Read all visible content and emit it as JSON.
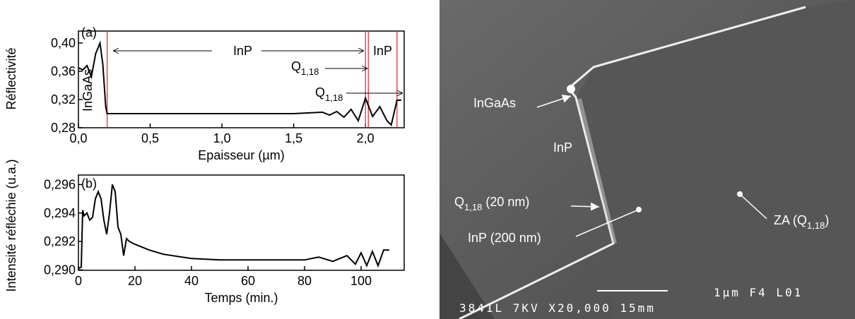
{
  "chart_data": [
    {
      "type": "line",
      "x_label": "Epaisseur (µm)",
      "y_label": "Réflectivité",
      "x": [
        0,
        0.03,
        0.06,
        0.09,
        0.12,
        0.15,
        0.17,
        0.19,
        0.2,
        0.5,
        1.0,
        1.5,
        1.6,
        1.7,
        1.75,
        1.8,
        1.85,
        1.9,
        1.95,
        2.0,
        2.05,
        2.1,
        2.15,
        2.18,
        2.22,
        2.25
      ],
      "values": [
        0.365,
        0.362,
        0.368,
        0.352,
        0.385,
        0.4,
        0.37,
        0.31,
        0.3,
        0.3,
        0.3,
        0.3,
        0.301,
        0.302,
        0.298,
        0.303,
        0.295,
        0.306,
        0.29,
        0.322,
        0.296,
        0.31,
        0.29,
        0.284,
        0.319,
        0.319
      ],
      "color": "#000000",
      "xlim": [
        0,
        2.27
      ],
      "ylim": [
        0.28,
        0.417
      ],
      "xticks": [
        {
          "value": 0,
          "label": "0,0"
        },
        {
          "value": 0.5,
          "label": "0,5"
        },
        {
          "value": 1,
          "label": "1,0"
        },
        {
          "value": 1.5,
          "label": "1,5"
        },
        {
          "value": 2,
          "label": "2,0"
        }
      ],
      "yticks": [
        {
          "value": 0.28,
          "label": "0,28"
        },
        {
          "value": 0.32,
          "label": "0,32"
        },
        {
          "value": 0.36,
          "label": "0,36"
        },
        {
          "value": 0.4,
          "label": "0,40"
        }
      ],
      "markers": [
        0.2,
        2.0,
        2.02,
        2.22
      ],
      "marker_color": "#e02020",
      "annotations": [
        {
          "text": "(a)"
        },
        {
          "text": "InP"
        },
        {
          "text": "Q",
          "sub": "1,18"
        },
        {
          "text": "InP"
        },
        {
          "text": "Q",
          "sub": "1,18"
        },
        {
          "text": "InGaAs"
        }
      ]
    },
    {
      "type": "line",
      "x_label": "Temps (min.)",
      "y_label": "Intensité réfléchie (u.a.)",
      "x": [
        0,
        1,
        1.5,
        2,
        3,
        4,
        5,
        6,
        7,
        8,
        9,
        10,
        11,
        12,
        13,
        14,
        15,
        16,
        17,
        18,
        20,
        25,
        30,
        40,
        50,
        60,
        70,
        80,
        85,
        90,
        95,
        98,
        100,
        102,
        104,
        106,
        108,
        110
      ],
      "values": [
        0.2901,
        0.2902,
        0.2942,
        0.2938,
        0.294,
        0.2935,
        0.2937,
        0.295,
        0.2955,
        0.295,
        0.2935,
        0.2925,
        0.294,
        0.296,
        0.2955,
        0.293,
        0.2925,
        0.291,
        0.2922,
        0.292,
        0.2918,
        0.2914,
        0.2911,
        0.2908,
        0.2907,
        0.2907,
        0.2907,
        0.2907,
        0.2909,
        0.2906,
        0.291,
        0.2904,
        0.2912,
        0.2903,
        0.2913,
        0.2903,
        0.2914,
        0.2914
      ],
      "color": "#000000",
      "xlim": [
        0,
        115.25
      ],
      "ylim": [
        0.28997,
        0.29667
      ],
      "xticks": [
        0,
        20,
        40,
        60,
        80,
        100
      ],
      "yticks": [
        {
          "value": 0.29,
          "label": "0,290"
        },
        {
          "value": 0.292,
          "label": "0,292"
        },
        {
          "value": 0.294,
          "label": "0,294"
        },
        {
          "value": 0.296,
          "label": "0,296"
        }
      ],
      "annotations": [
        {
          "text": "(b)"
        }
      ]
    }
  ],
  "image": {
    "labels": [
      {
        "text": "InGaAs"
      },
      {
        "text": "InP"
      },
      {
        "text": "Q",
        "sub": "1,18",
        "after": " (20 nm)"
      },
      {
        "text": "InP (200 nm)"
      },
      {
        "text": "ZA (Q",
        "sub": "1,18",
        "after": ")"
      }
    ],
    "scale": "1µm  F4  L01",
    "footer": "3841L    7KV   X20,000  15mm"
  }
}
